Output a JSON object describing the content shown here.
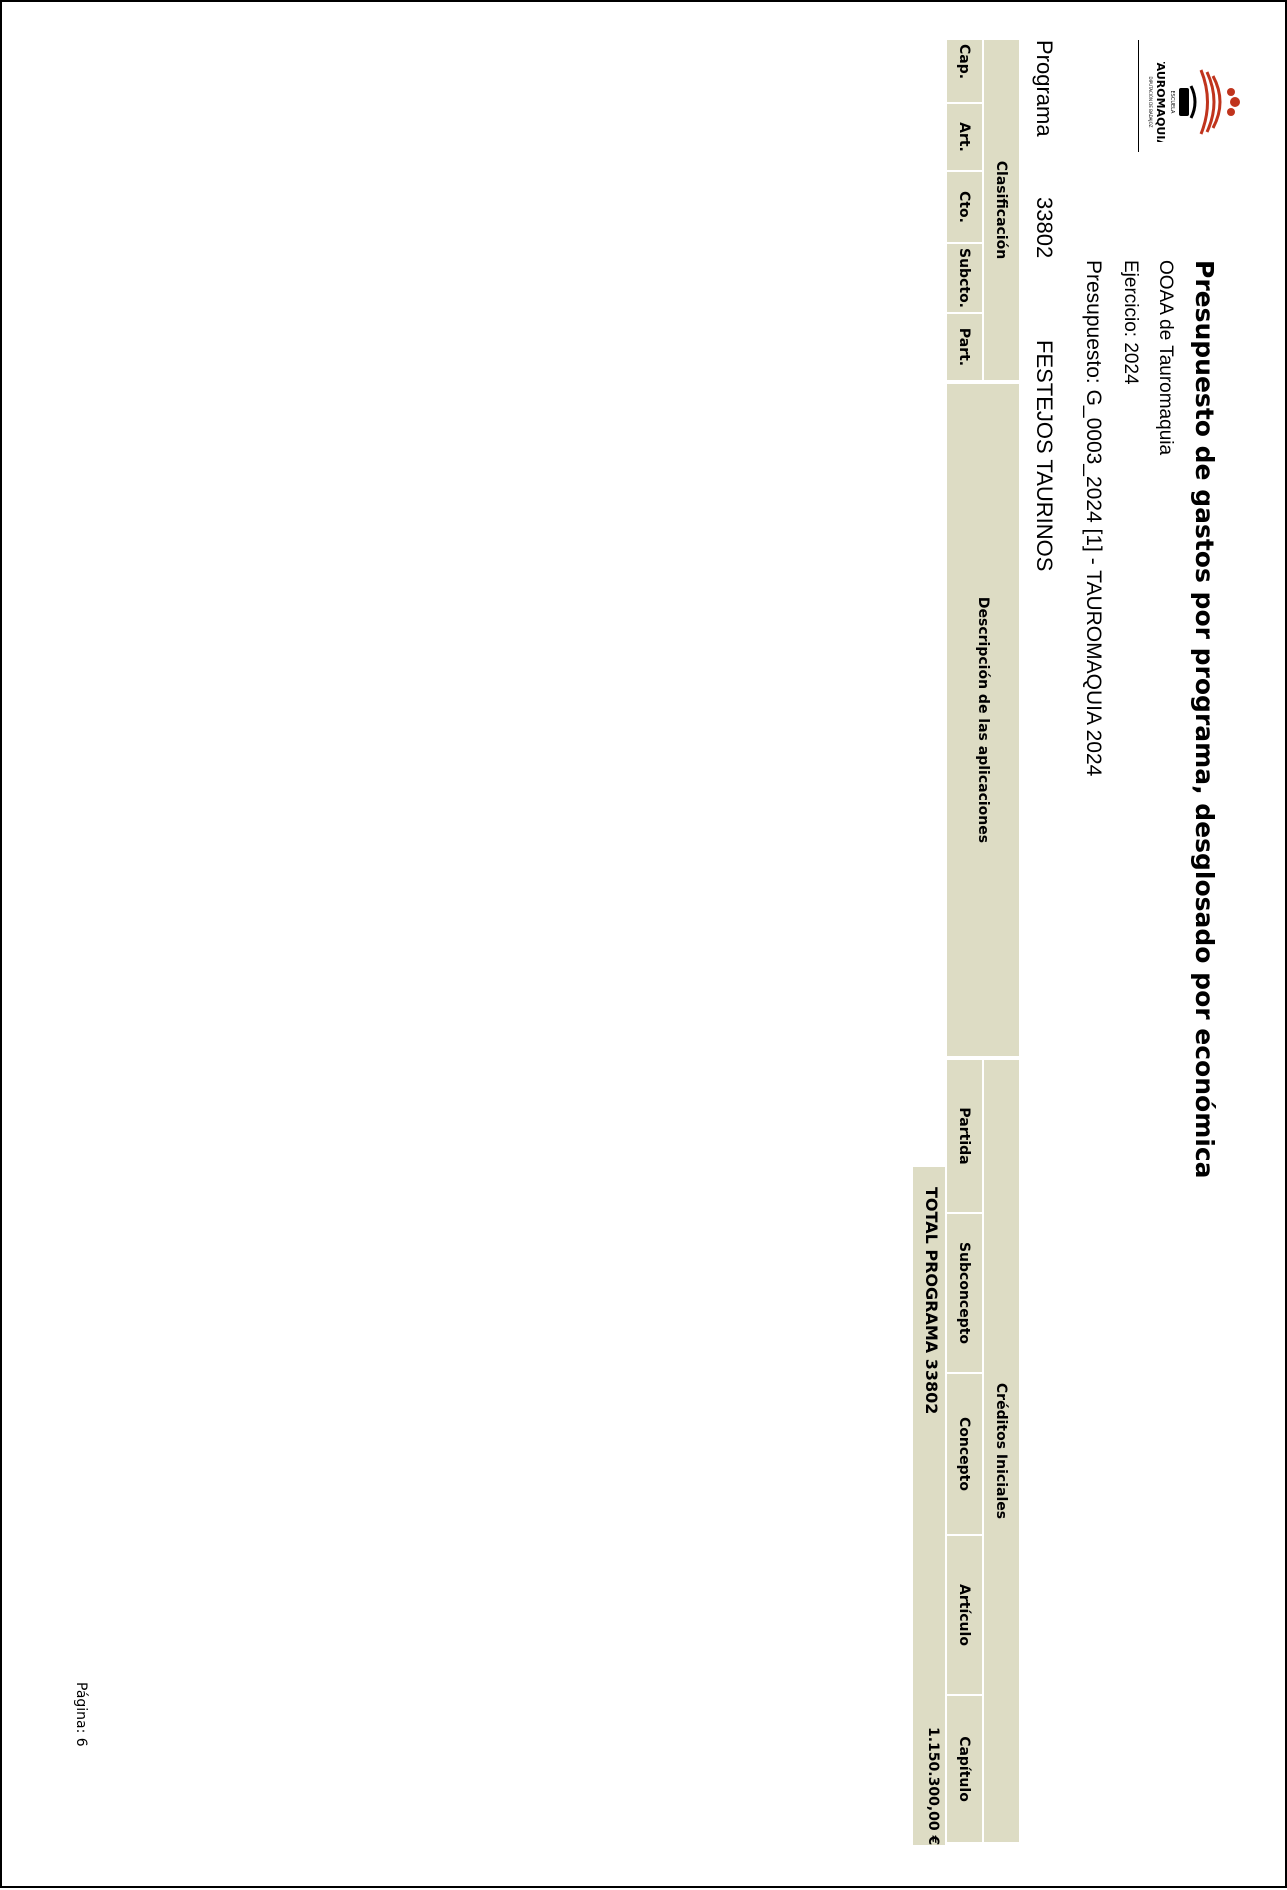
{
  "report": {
    "title": "Presupuesto de gastos por programa, desglosado por económica",
    "organization": "OOAA de Tauromaquia",
    "exercise": "Ejercicio: 2024",
    "budget": "Presupuesto: G_0003_2024 [1]  - TAUROMAQUIA 2024"
  },
  "logo": {
    "text_main": "TAUROMAQUIA",
    "text_small": "ESCUELA",
    "text_sub": "DIPUTACIÓN DE BADAJOZ",
    "accent_color": "#c0341d"
  },
  "program": {
    "label": "Programa",
    "code": "33802",
    "name": "FESTEJOS TAURINOS"
  },
  "table": {
    "group_classification": "Clasificación",
    "group_credits": "Créditos Iniciales",
    "col_cap": "Cap.",
    "col_art": "Art.",
    "col_cto": "Cto.",
    "col_subcto": "Subcto.",
    "col_part": "Part.",
    "col_description": "Descripción de las aplicaciones",
    "col_partida": "Partida",
    "col_subconcepto": "Subconcepto",
    "col_concepto": "Concepto",
    "col_articulo": "Artículo",
    "col_capitulo": "Capítulo",
    "header_bg": "#dddcc4"
  },
  "total": {
    "label": "TOTAL PROGRAMA 33802",
    "value": "1.150.300,00 €"
  },
  "footer": {
    "page": "Página:  6"
  }
}
